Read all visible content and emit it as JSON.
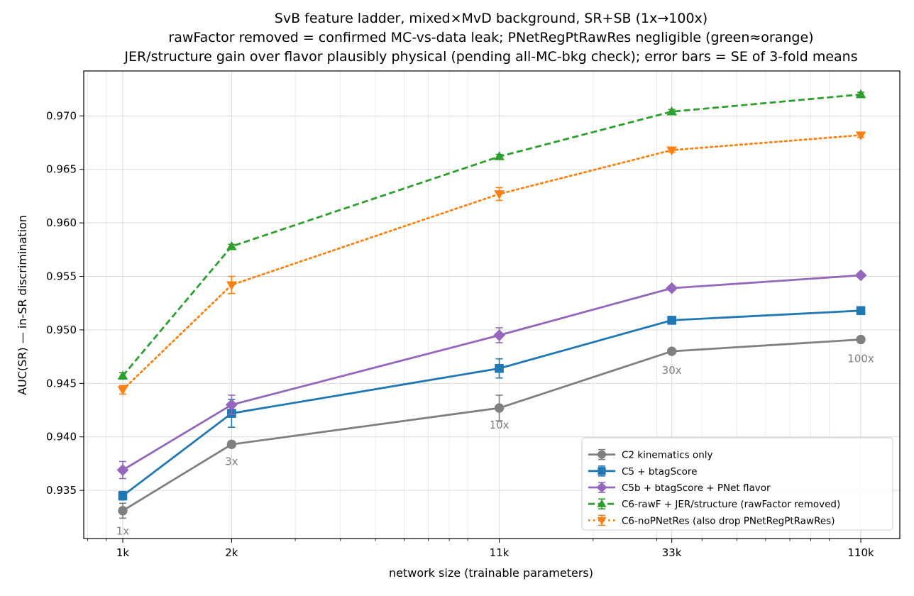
{
  "chart_data": {
    "type": "line",
    "title_lines": [
      "SvB feature ladder, mixed×MvD background, SR+SB (1x→100x)",
      "rawFactor removed = confirmed MC-vs-data leak;  PNetRegPtRawRes negligible (green≈orange)",
      "JER/structure gain over flavor plausibly physical (pending all-MC-bkg check); error bars = SE of 3-fold means"
    ],
    "xlabel": "network size (trainable parameters)",
    "ylabel": "AUC(SR)  —  in-SR discrimination",
    "x_scale": "log",
    "x_values": [
      1000,
      2000,
      11000,
      33000,
      110000
    ],
    "x_tick_labels": [
      "1k",
      "2k",
      "11k",
      "33k",
      "110k"
    ],
    "ylim": [
      0.9305,
      0.9742
    ],
    "y_ticks": [
      0.935,
      0.94,
      0.945,
      0.95,
      0.955,
      0.96,
      0.965,
      0.97
    ],
    "y_tick_labels": [
      "0.935",
      "0.940",
      "0.945",
      "0.950",
      "0.955",
      "0.960",
      "0.965",
      "0.970"
    ],
    "grid": true,
    "legend_position": "lower-right",
    "series": [
      {
        "name": "C2  kinematics only",
        "color": "#7f7f7f",
        "marker": "circle",
        "linestyle": "solid",
        "values": [
          0.9331,
          0.9393,
          0.9427,
          0.948,
          0.9491
        ],
        "errors": [
          0.0007,
          0.0003,
          0.0012,
          0.0002,
          0.0002
        ]
      },
      {
        "name": "C5  + btagScore",
        "color": "#1f77b4",
        "marker": "square",
        "linestyle": "solid",
        "values": [
          0.9345,
          0.9422,
          0.9464,
          0.9509,
          0.9518
        ],
        "errors": [
          0.0004,
          0.0013,
          0.0009,
          0.0002,
          0.0002
        ]
      },
      {
        "name": "C5b + btagScore + PNet flavor",
        "color": "#9467bd",
        "marker": "diamond",
        "linestyle": "solid",
        "values": [
          0.9369,
          0.943,
          0.9495,
          0.9539,
          0.9551
        ],
        "errors": [
          0.0008,
          0.0009,
          0.0007,
          0.0002,
          0.0002
        ]
      },
      {
        "name": "C6-rawF + JER/structure (rawFactor removed)",
        "color": "#2ca02c",
        "marker": "triangle-up",
        "linestyle": "dashed",
        "values": [
          0.9457,
          0.9578,
          0.9662,
          0.9704,
          0.972
        ],
        "errors": [
          0.0003,
          0.0002,
          0.0002,
          0.0002,
          0.0002
        ]
      },
      {
        "name": "C6-noPNetRes (also drop PNetRegPtRawRes)",
        "color": "#ff7f0e",
        "marker": "triangle-down",
        "linestyle": "dotted",
        "values": [
          0.9444,
          0.9542,
          0.9627,
          0.9668,
          0.9682
        ],
        "errors": [
          0.0004,
          0.0008,
          0.0006,
          0.0002,
          0.0002
        ]
      }
    ],
    "annotations": [
      {
        "text": "1x",
        "x": 1000,
        "y": 0.9312
      },
      {
        "text": "3x",
        "x": 2000,
        "y": 0.9377
      },
      {
        "text": "10x",
        "x": 11000,
        "y": 0.9411
      },
      {
        "text": "30x",
        "x": 33000,
        "y": 0.9462
      },
      {
        "text": "100x",
        "x": 110000,
        "y": 0.9473
      }
    ]
  }
}
